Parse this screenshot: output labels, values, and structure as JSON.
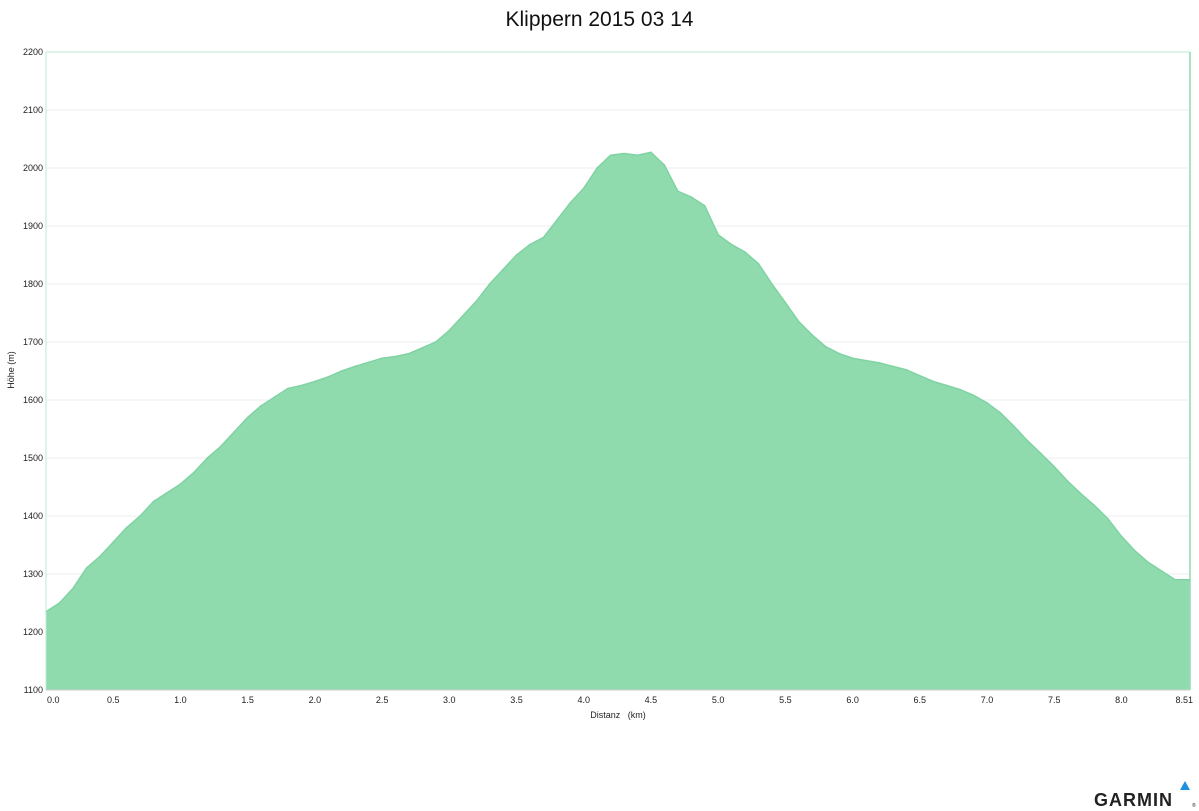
{
  "chart_data": {
    "type": "area",
    "title": "Klippern 2015 03 14",
    "xlabel": "Distanz   (km)",
    "ylabel": "Höhe (m)",
    "xlim": [
      0,
      8.51
    ],
    "ylim": [
      1100,
      2200
    ],
    "x_ticks": [
      "0.0",
      "0.5",
      "1.0",
      "1.5",
      "2.0",
      "2.5",
      "3.0",
      "3.5",
      "4.0",
      "4.5",
      "5.0",
      "5.5",
      "6.0",
      "6.5",
      "7.0",
      "7.5",
      "8.0",
      "8.51"
    ],
    "y_ticks": [
      "1100",
      "1200",
      "1300",
      "1400",
      "1500",
      "1600",
      "1700",
      "1800",
      "1900",
      "2000",
      "2100",
      "2200"
    ],
    "grid": true,
    "legend": "none",
    "fill_color": "#90dbae",
    "line_color": "#7fd3a2",
    "series": [
      {
        "x": [
          0.0,
          0.1,
          0.2,
          0.3,
          0.4,
          0.5,
          0.6,
          0.7,
          0.8,
          0.9,
          1.0,
          1.1,
          1.2,
          1.3,
          1.4,
          1.5,
          1.6,
          1.7,
          1.8,
          1.9,
          2.0,
          2.1,
          2.2,
          2.3,
          2.4,
          2.5,
          2.6,
          2.7,
          2.8,
          2.9,
          3.0,
          3.1,
          3.2,
          3.3,
          3.4,
          3.5,
          3.6,
          3.7,
          3.8,
          3.9,
          4.0,
          4.1,
          4.2,
          4.3,
          4.4,
          4.5,
          4.6,
          4.7,
          4.8,
          4.9,
          5.0,
          5.1,
          5.2,
          5.3,
          5.4,
          5.5,
          5.6,
          5.7,
          5.8,
          5.9,
          6.0,
          6.1,
          6.2,
          6.3,
          6.4,
          6.5,
          6.6,
          6.7,
          6.8,
          6.9,
          7.0,
          7.1,
          7.2,
          7.3,
          7.4,
          7.5,
          7.6,
          7.7,
          7.8,
          7.9,
          8.0,
          8.1,
          8.2,
          8.3,
          8.4,
          8.51
        ],
        "y": [
          1235,
          1250,
          1275,
          1310,
          1330,
          1355,
          1380,
          1400,
          1425,
          1440,
          1455,
          1475,
          1500,
          1520,
          1545,
          1570,
          1590,
          1605,
          1620,
          1625,
          1632,
          1640,
          1650,
          1658,
          1665,
          1672,
          1675,
          1680,
          1690,
          1700,
          1720,
          1745,
          1770,
          1800,
          1825,
          1850,
          1868,
          1880,
          1910,
          1940,
          1965,
          2000,
          2022,
          2025,
          2022,
          2027,
          2005,
          1960,
          1950,
          1935,
          1885,
          1868,
          1855,
          1835,
          1800,
          1768,
          1735,
          1712,
          1692,
          1680,
          1672,
          1668,
          1664,
          1658,
          1652,
          1642,
          1632,
          1625,
          1618,
          1608,
          1595,
          1578,
          1555,
          1530,
          1508,
          1485,
          1460,
          1438,
          1418,
          1395,
          1365,
          1340,
          1320,
          1305,
          1290,
          1290
        ]
      }
    ]
  },
  "brand": {
    "text": "GARMIN",
    "reg": "®",
    "mark_color": "#1e90e0"
  }
}
